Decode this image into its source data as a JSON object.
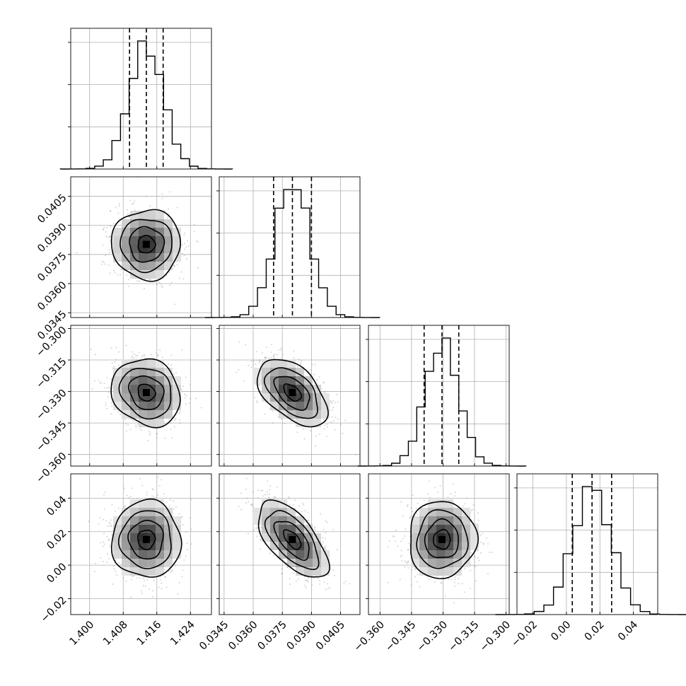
{
  "chart_data": {
    "type": "corner",
    "params": [
      {
        "lim": [
          1.3955,
          1.429
        ],
        "ticks": [
          1.4,
          1.408,
          1.416,
          1.424
        ],
        "tick_labels": [
          "1.400",
          "1.408",
          "1.416",
          "1.424"
        ],
        "quantiles": [
          1.4095,
          1.4135,
          1.4175
        ],
        "median": 1.4135,
        "sigma": 0.0041
      },
      {
        "lim": [
          0.03425,
          0.0415
        ],
        "ticks": [
          0.0345,
          0.036,
          0.0375,
          0.039,
          0.0405
        ],
        "tick_labels": [
          "0.0345",
          "0.0360",
          "0.0375",
          "0.0390",
          "0.0405"
        ],
        "quantiles": [
          0.03705,
          0.03802,
          0.039
        ],
        "median": 0.03802,
        "sigma": 0.0009
      },
      {
        "lim": [
          -0.3655,
          -0.2985
        ],
        "ticks": [
          -0.36,
          -0.345,
          -0.33,
          -0.315,
          -0.3
        ],
        "tick_labels": [
          "−0.360",
          "−0.345",
          "−0.330",
          "−0.315",
          "−0.300"
        ],
        "quantiles": [
          -0.339,
          -0.3305,
          -0.3225
        ],
        "median": -0.3305,
        "sigma": 0.008
      },
      {
        "lim": [
          -0.0295,
          0.0545
        ],
        "ticks": [
          -0.02,
          0.0,
          0.02,
          0.04
        ],
        "tick_labels": [
          "−0.02",
          "0.00",
          "0.02",
          "0.04"
        ],
        "quantiles": [
          0.0035,
          0.0153,
          0.027
        ],
        "median": 0.0153,
        "sigma": 0.0115
      }
    ],
    "correlations": [
      [
        1.0,
        0.0,
        -0.15,
        0.0
      ],
      [
        0.0,
        1.0,
        -0.5,
        -0.62
      ],
      [
        -0.15,
        -0.5,
        1.0,
        0.02
      ],
      [
        0.0,
        -0.62,
        0.02,
        1.0
      ]
    ],
    "histogram_bins": 20,
    "contour_levels_sigma": [
      0.5,
      1.0,
      1.5,
      2.0
    ],
    "grid": true,
    "colors": {
      "line": "#000000",
      "grid": "#b0b0b0",
      "points": "#8c8c8c"
    }
  }
}
